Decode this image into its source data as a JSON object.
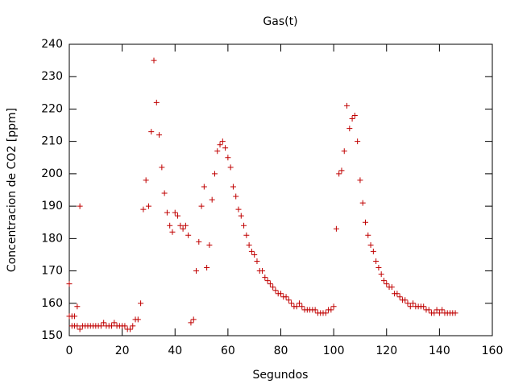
{
  "chart_data": {
    "type": "scatter",
    "title": "Gas(t)",
    "x_label": "Segundos",
    "y_label": "Concentracion de CO2 [ppm]",
    "color": "#c00000",
    "x": [
      0,
      0,
      1,
      1,
      2,
      2,
      3,
      3,
      4,
      4,
      5,
      6,
      7,
      8,
      9,
      10,
      11,
      12,
      13,
      14,
      15,
      16,
      17,
      18,
      19,
      20,
      21,
      22,
      23,
      24,
      25,
      26,
      27,
      28,
      29,
      30,
      31,
      32,
      33,
      34,
      35,
      36,
      37,
      38,
      39,
      40,
      41,
      42,
      43,
      44,
      45,
      46,
      47,
      48,
      49,
      50,
      51,
      52,
      53,
      54,
      55,
      56,
      57,
      58,
      59,
      60,
      61,
      62,
      63,
      64,
      65,
      66,
      67,
      68,
      69,
      70,
      71,
      72,
      73,
      74,
      75,
      76,
      77,
      78,
      79,
      80,
      81,
      82,
      83,
      84,
      85,
      86,
      87,
      88,
      89,
      90,
      91,
      92,
      93,
      94,
      95,
      96,
      97,
      98,
      99,
      100,
      101,
      102,
      103,
      104,
      105,
      106,
      107,
      108,
      109,
      110,
      111,
      112,
      113,
      114,
      115,
      116,
      117,
      118,
      119,
      120,
      121,
      122,
      123,
      124,
      125,
      126,
      127,
      128,
      129,
      130,
      131,
      132,
      133,
      134,
      135,
      136,
      137,
      138,
      139,
      140,
      141,
      142,
      143,
      144,
      145,
      146
    ],
    "values": [
      166,
      156,
      153,
      156,
      153,
      156,
      153,
      159,
      152,
      190,
      153,
      153,
      153,
      153,
      153,
      153,
      153,
      153,
      154,
      153,
      153,
      153,
      154,
      153,
      153,
      153,
      153,
      152,
      152,
      153,
      155,
      155,
      160,
      189,
      198,
      190,
      213,
      235,
      222,
      212,
      202,
      194,
      188,
      184,
      182,
      188,
      187,
      184,
      183,
      184,
      181,
      154,
      155,
      170,
      179,
      190,
      196,
      171,
      178,
      192,
      200,
      207,
      209,
      210,
      208,
      205,
      202,
      196,
      193,
      189,
      187,
      184,
      181,
      178,
      176,
      175,
      173,
      170,
      170,
      168,
      167,
      166,
      165,
      164,
      163,
      163,
      162,
      162,
      161,
      160,
      159,
      159,
      160,
      159,
      158,
      158,
      158,
      158,
      158,
      157,
      157,
      157,
      157,
      158,
      158,
      159,
      183,
      200,
      201,
      207,
      221,
      214,
      217,
      218,
      210,
      198,
      191,
      185,
      181,
      178,
      176,
      173,
      171,
      169,
      167,
      166,
      165,
      165,
      163,
      163,
      162,
      161,
      161,
      160,
      159,
      160,
      159,
      159,
      159,
      159,
      158,
      158,
      157,
      157,
      158,
      157,
      158,
      157,
      157,
      157,
      157,
      157
    ],
    "xlim": [
      0,
      160
    ],
    "xticks": [
      0,
      20,
      40,
      60,
      80,
      100,
      120,
      140,
      160
    ],
    "ylim": [
      150,
      240
    ],
    "yticks": [
      150,
      160,
      170,
      180,
      190,
      200,
      210,
      220,
      230,
      240
    ]
  }
}
